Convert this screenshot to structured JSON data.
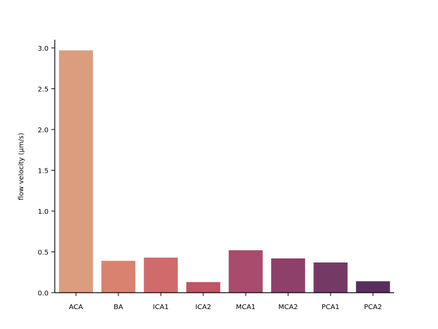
{
  "chart_data": {
    "type": "bar",
    "title": "",
    "xlabel": "",
    "ylabel": "flow velocity (µm/s)",
    "ylim": [
      0,
      3.1
    ],
    "yticks": [
      0.0,
      0.5,
      1.0,
      1.5,
      2.0,
      2.5,
      3.0
    ],
    "ytick_labels": [
      "0.0",
      "0.5",
      "1.0",
      "1.5",
      "2.0",
      "2.5",
      "3.0"
    ],
    "grid": false,
    "legend": "none",
    "categories": [
      "ACA",
      "BA",
      "ICA1",
      "ICA2",
      "MCA1",
      "MCA2",
      "PCA1",
      "PCA2"
    ],
    "values": [
      2.97,
      0.39,
      0.43,
      0.13,
      0.52,
      0.42,
      0.37,
      0.14
    ],
    "colors": [
      "#dc9d7f",
      "#d8826f",
      "#d06b6b",
      "#c05464",
      "#a84b6d",
      "#8e4069",
      "#753965",
      "#5a2d5f"
    ]
  }
}
